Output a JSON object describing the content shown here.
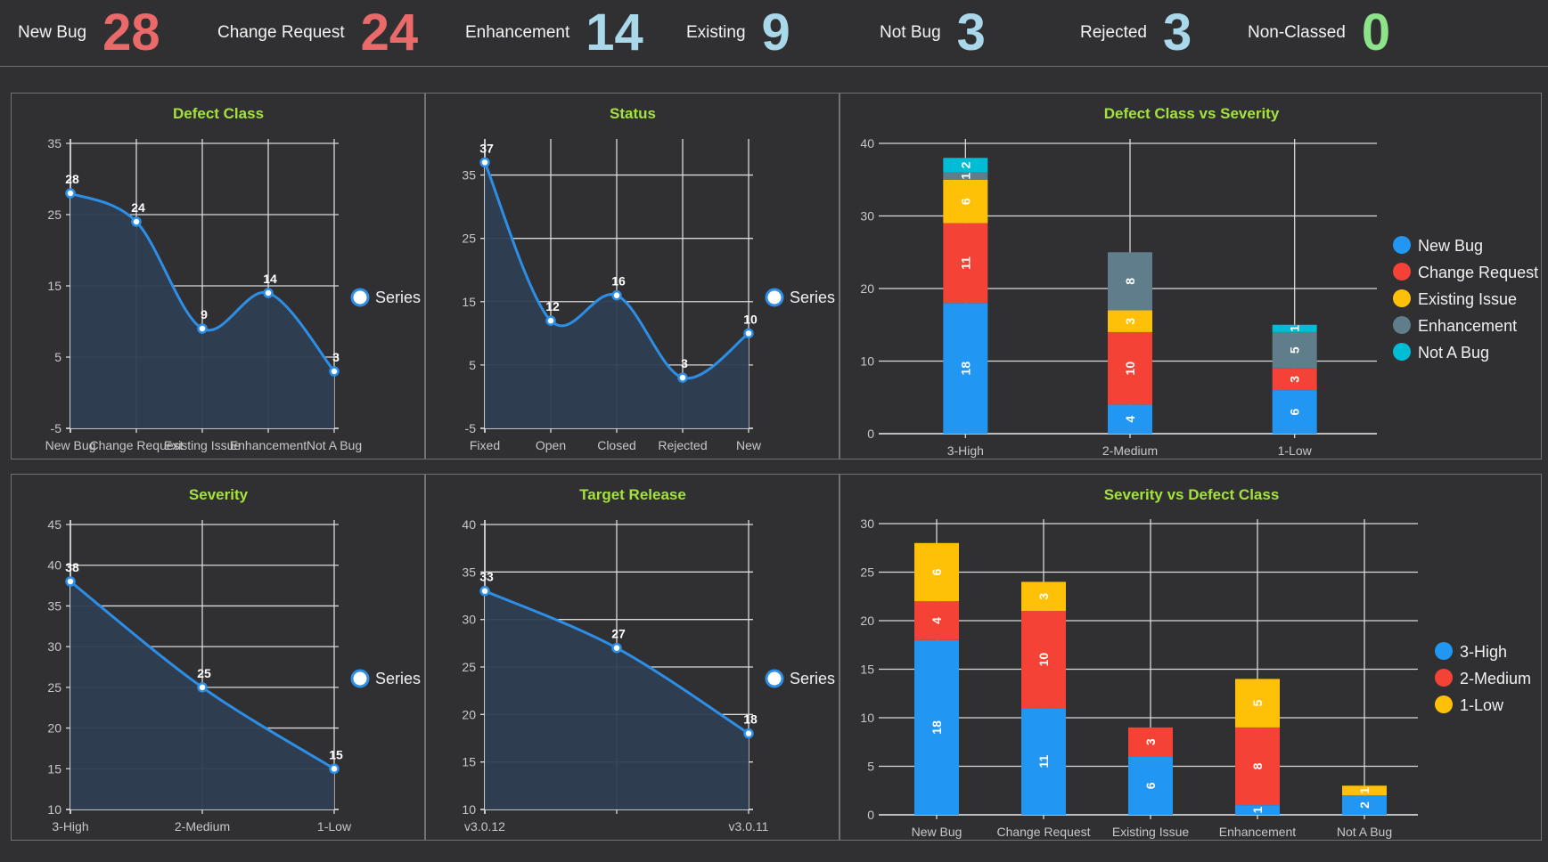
{
  "kpis": [
    {
      "label": "New Bug",
      "value": "28",
      "color": "#ea6a6a"
    },
    {
      "label": "Change Request",
      "value": "24",
      "color": "#ea6a6a"
    },
    {
      "label": "Enhancement",
      "value": "14",
      "color": "#a8d8ea"
    },
    {
      "label": "Existing",
      "value": "9",
      "color": "#a8d8ea"
    },
    {
      "label": "Not Bug",
      "value": "3",
      "color": "#a8d8ea"
    },
    {
      "label": "Rejected",
      "value": "3",
      "color": "#a8d8ea"
    },
    {
      "label": "Non-Classed",
      "value": "0",
      "color": "#8de38a"
    }
  ],
  "colors": {
    "title": "#a4e23c",
    "line": "#2d8ee6",
    "area": "#2e3e52",
    "blue": "#2196f3",
    "red": "#f44336",
    "yellow": "#ffc107",
    "gray": "#607d8b",
    "cyan": "#00bcd4"
  },
  "chart_data": [
    {
      "id": "defect-class",
      "type": "area",
      "title": "Defect Class",
      "categories": [
        "New Bug",
        "Change Request",
        "Existing Issue",
        "Enhancement",
        "Not A Bug"
      ],
      "series": [
        {
          "name": "Series",
          "values": [
            28,
            24,
            9,
            14,
            3
          ]
        }
      ],
      "ylim": [
        -5,
        35
      ],
      "yticks": [
        -5,
        5,
        15,
        25,
        35
      ],
      "legend": "right"
    },
    {
      "id": "status",
      "type": "area",
      "title": "Status",
      "categories": [
        "Fixed",
        "Open",
        "Closed",
        "Rejected",
        "New"
      ],
      "series": [
        {
          "name": "Series",
          "values": [
            37,
            12,
            16,
            3,
            10
          ]
        }
      ],
      "ylim": [
        -5,
        40
      ],
      "yticks": [
        -5,
        5,
        15,
        25,
        35
      ],
      "legend": "right"
    },
    {
      "id": "severity",
      "type": "area",
      "title": "Severity",
      "categories": [
        "3-High",
        "2-Medium",
        "1-Low"
      ],
      "series": [
        {
          "name": "Series",
          "values": [
            38,
            25,
            15
          ]
        }
      ],
      "ylim": [
        10,
        45
      ],
      "yticks": [
        10,
        15,
        20,
        25,
        30,
        35,
        40,
        45
      ],
      "legend": "right"
    },
    {
      "id": "target-release",
      "type": "area",
      "title": "Target Release",
      "categories": [
        "v3.0.12",
        "",
        "v3.0.11"
      ],
      "series": [
        {
          "name": "Series",
          "values": [
            33,
            27,
            18
          ]
        }
      ],
      "ylim": [
        10,
        40
      ],
      "yticks": [
        10,
        15,
        20,
        25,
        30,
        35,
        40
      ],
      "legend": "right"
    },
    {
      "id": "class-vs-severity",
      "type": "bar",
      "stacked": true,
      "title": "Defect Class vs Severity",
      "categories": [
        "3-High",
        "2-Medium",
        "1-Low"
      ],
      "series": [
        {
          "name": "New Bug",
          "values": [
            18,
            4,
            6
          ]
        },
        {
          "name": "Change Request",
          "values": [
            11,
            10,
            3
          ]
        },
        {
          "name": "Existing Issue",
          "values": [
            6,
            3,
            0
          ]
        },
        {
          "name": "Enhancement",
          "values": [
            1,
            8,
            5
          ]
        },
        {
          "name": "Not A Bug",
          "values": [
            2,
            0,
            1
          ]
        }
      ],
      "ylim": [
        0,
        40
      ],
      "yticks": [
        0,
        10,
        20,
        30,
        40
      ],
      "legend": "right"
    },
    {
      "id": "severity-vs-class",
      "type": "bar",
      "stacked": true,
      "title": "Severity vs Defect Class",
      "categories": [
        "New Bug",
        "Change Request",
        "Existing Issue",
        "Enhancement",
        "Not A Bug"
      ],
      "series": [
        {
          "name": "3-High",
          "values": [
            18,
            11,
            6,
            1,
            2
          ]
        },
        {
          "name": "2-Medium",
          "values": [
            4,
            10,
            3,
            8,
            0
          ]
        },
        {
          "name": "1-Low",
          "values": [
            6,
            3,
            0,
            5,
            1
          ]
        }
      ],
      "ylim": [
        0,
        30
      ],
      "yticks": [
        0,
        5,
        10,
        15,
        20,
        25,
        30
      ],
      "legend": "right"
    }
  ]
}
